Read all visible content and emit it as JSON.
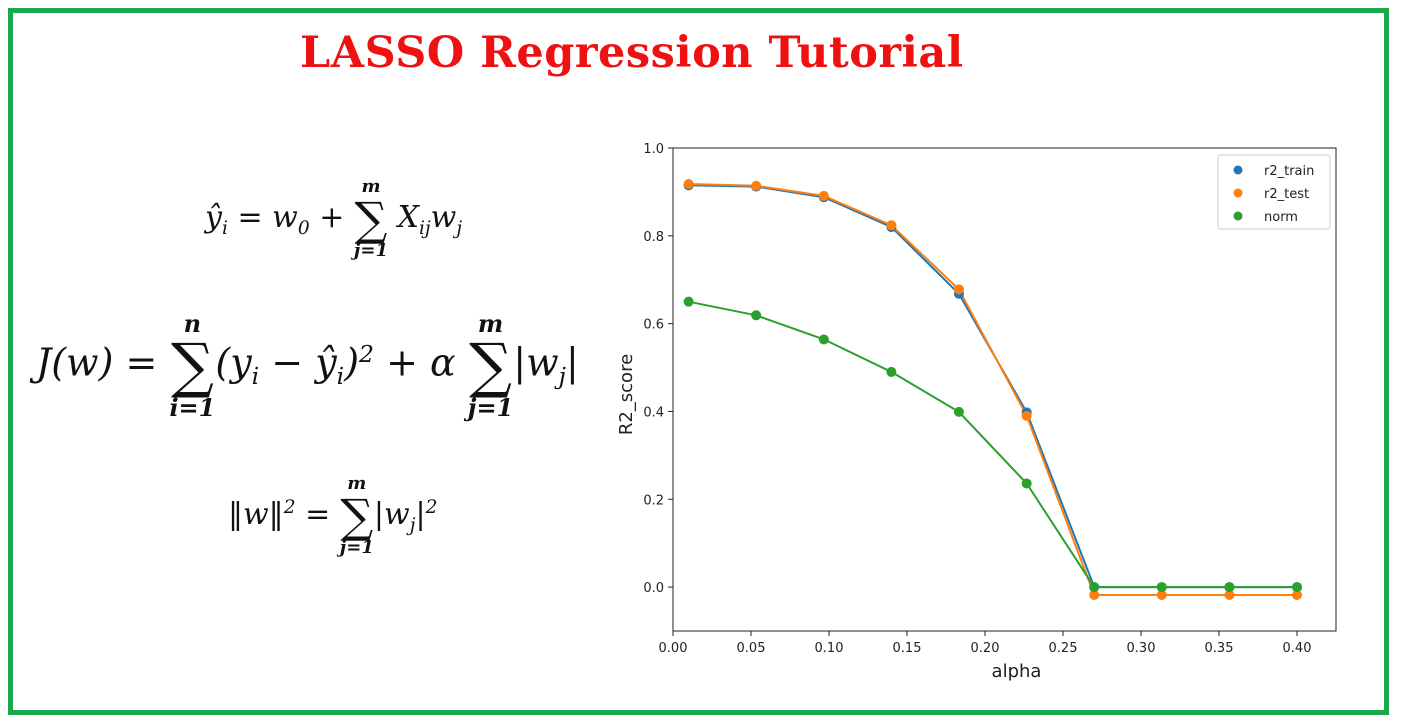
{
  "title": "LASSO Regression Tutorial",
  "equations": {
    "prediction": {
      "lhs": "ŷ",
      "lhs_sub": "i",
      "eq": "=",
      "w0": "w",
      "w0_sub": "0",
      "plus": "+",
      "sum_upper": "m",
      "sum_lower": "j=1",
      "term": "X",
      "term_sub": "ij",
      "term2": "w",
      "term2_sub": "j"
    },
    "cost": {
      "lhs": "J(w) =",
      "sum1_upper": "n",
      "sum1_lower": "i=1",
      "body1": "(y",
      "body1_sub": "i",
      "body1_mid": " − ŷ",
      "body1_sub2": "i",
      "body1_end": ")",
      "body1_sup": "2",
      "plus_alpha": "+ α",
      "sum2_upper": "m",
      "sum2_lower": "j=1",
      "body2": "|w",
      "body2_sub": "j",
      "body2_end": "|"
    },
    "norm": {
      "lhs": "‖w‖",
      "lhs_sup": "2",
      "eq": "=",
      "sum_upper": "m",
      "sum_lower": "j=1",
      "body": "|w",
      "body_sub": "j",
      "body_end": "|",
      "body_sup": "2"
    }
  },
  "chart_data": {
    "type": "line",
    "xlabel": "alpha",
    "ylabel": "R2_score",
    "xlim": [
      0.0,
      0.425
    ],
    "ylim": [
      -0.1,
      1.0
    ],
    "xticks": [
      "0.00",
      "0.05",
      "0.10",
      "0.15",
      "0.20",
      "0.25",
      "0.30",
      "0.35",
      "0.40"
    ],
    "yticks": [
      "0.0",
      "0.2",
      "0.4",
      "0.6",
      "0.8",
      "1.0"
    ],
    "x": [
      0.01,
      0.0533,
      0.0967,
      0.14,
      0.1833,
      0.2267,
      0.27,
      0.3133,
      0.3567,
      0.4
    ],
    "series": [
      {
        "name": "r2_train",
        "color": "#1f77b4",
        "values": [
          0.915,
          0.912,
          0.888,
          0.82,
          0.668,
          0.398,
          0.0,
          0.0,
          0.0,
          0.0
        ]
      },
      {
        "name": "r2_test",
        "color": "#ff7f0e",
        "values": [
          0.918,
          0.914,
          0.891,
          0.824,
          0.678,
          0.39,
          -0.018,
          -0.018,
          -0.018,
          -0.018
        ]
      },
      {
        "name": "norm",
        "color": "#2ca02c",
        "values": [
          0.65,
          0.619,
          0.564,
          0.49,
          0.399,
          0.236,
          0.0,
          0.0,
          0.0,
          0.0
        ]
      }
    ],
    "legend": "top-right",
    "grid": false
  }
}
